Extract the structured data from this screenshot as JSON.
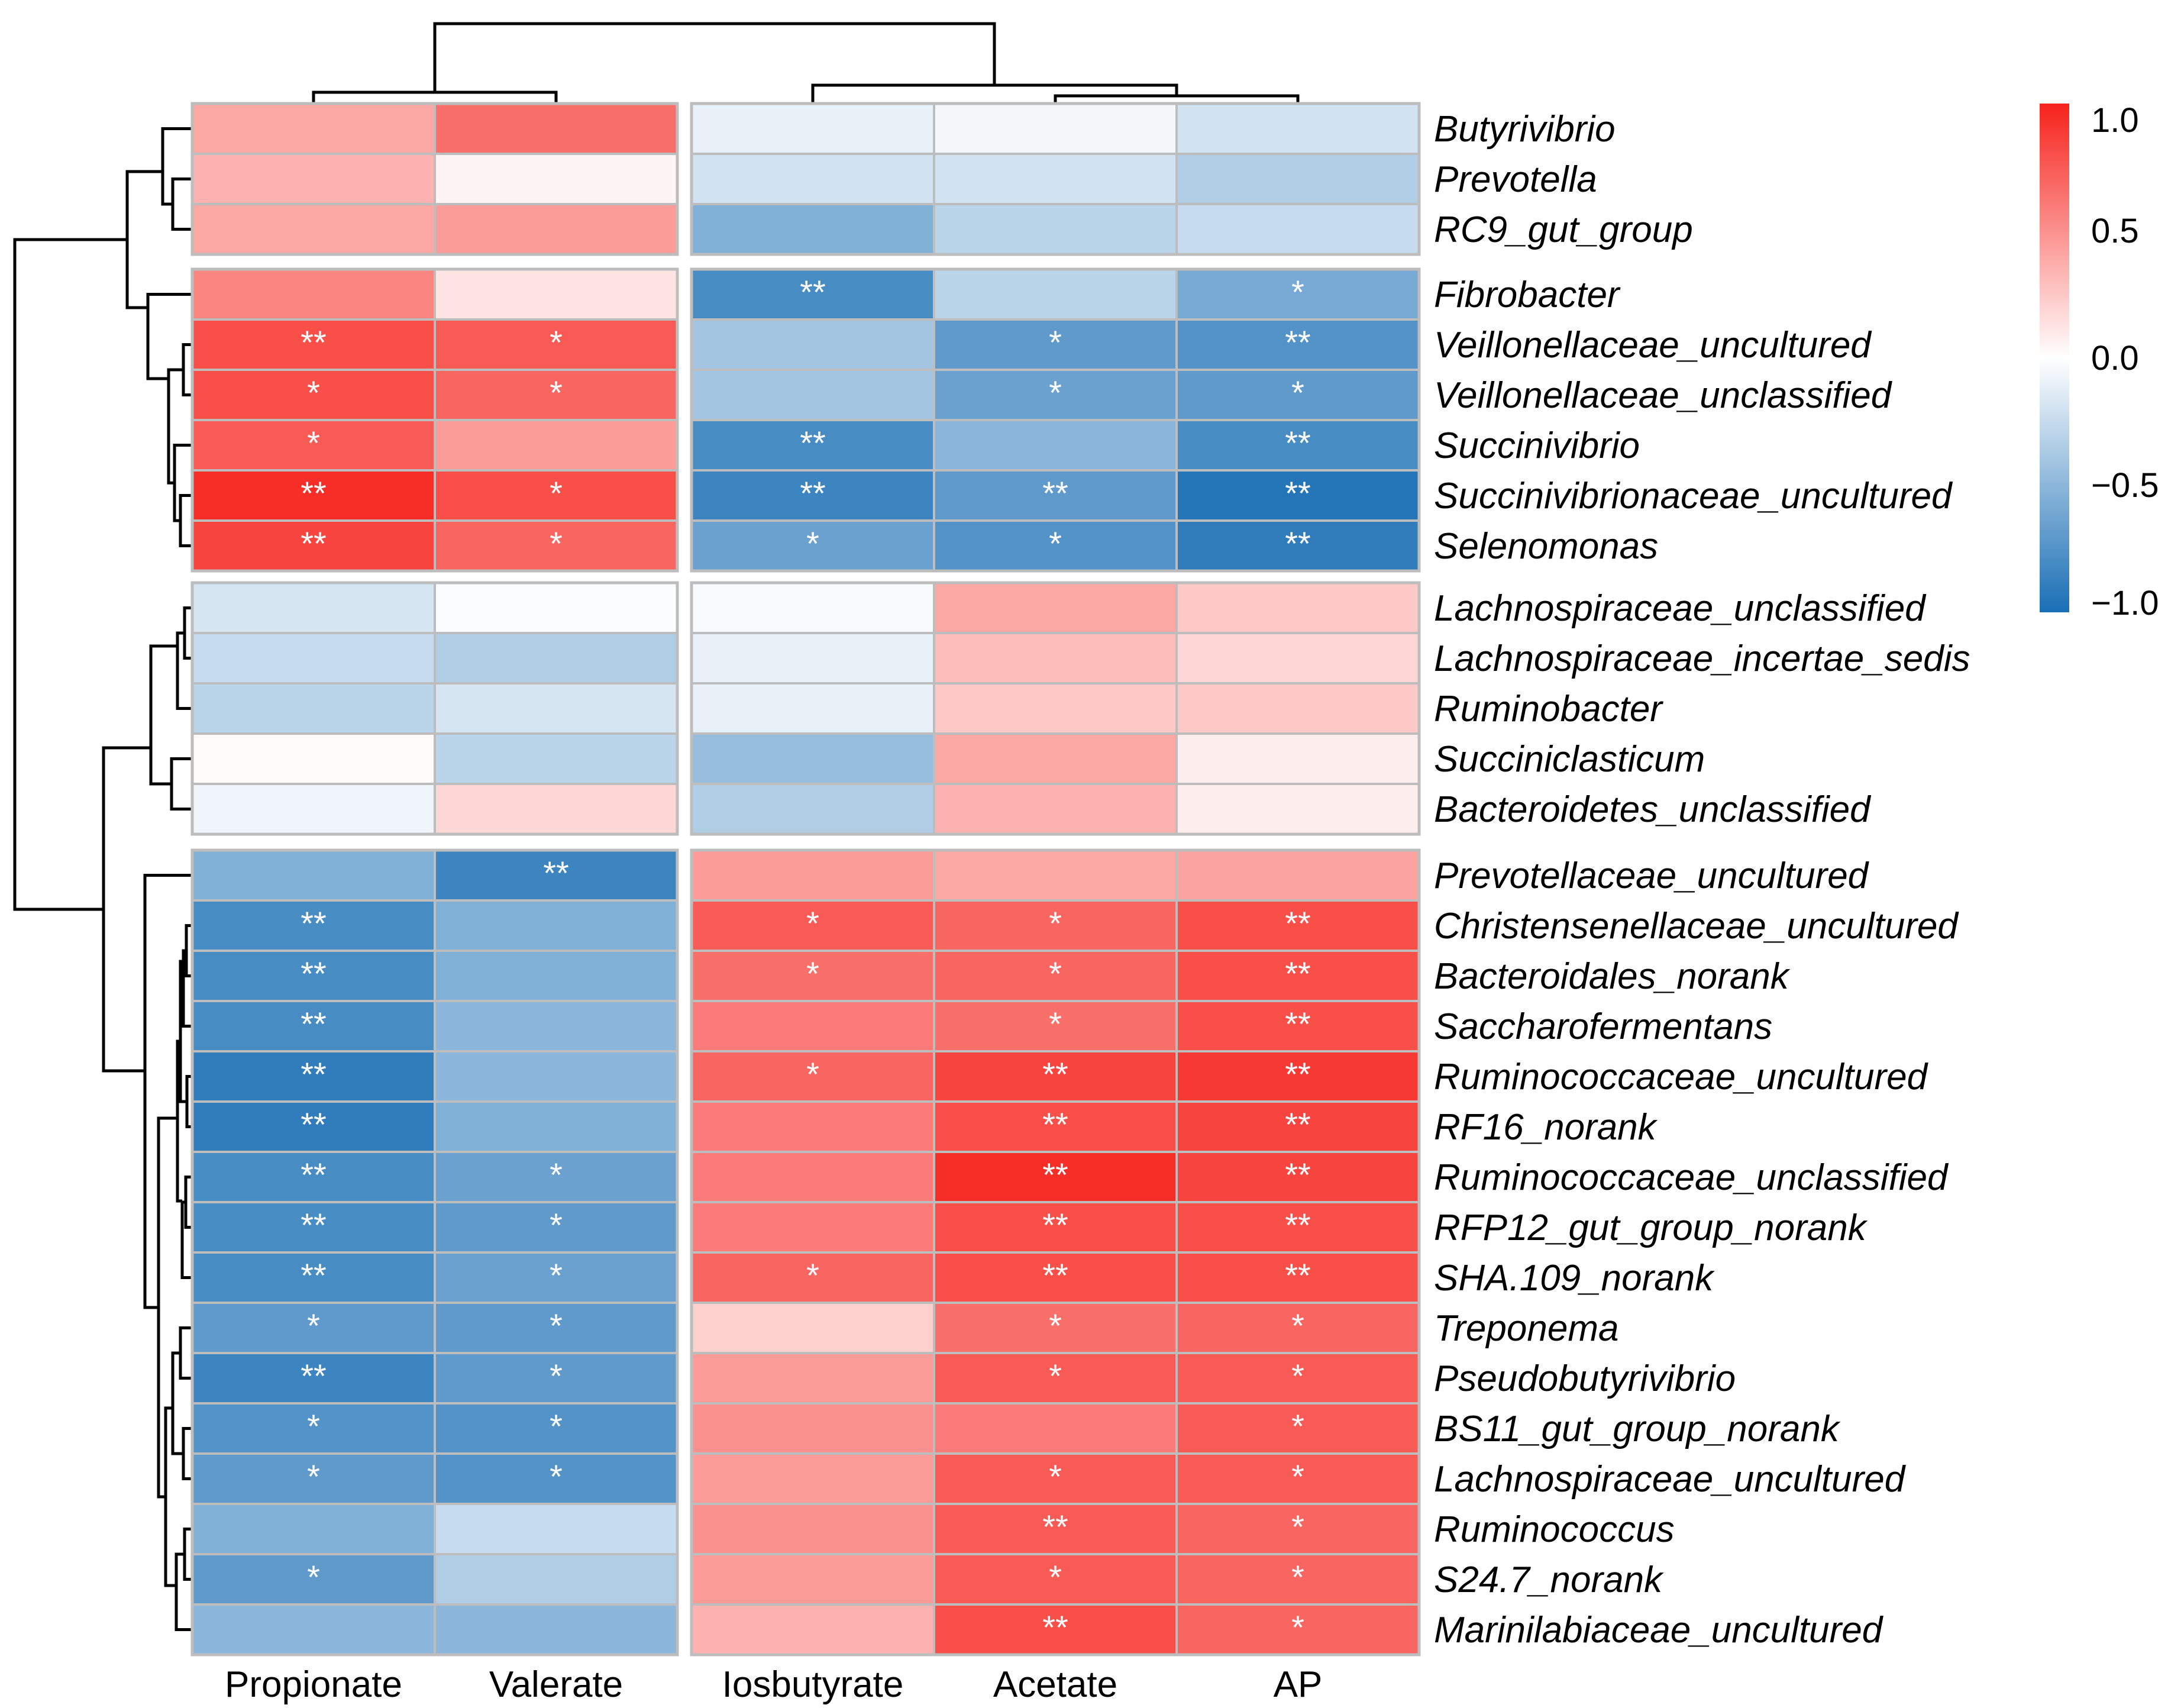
{
  "chart_data": {
    "type": "heatmap",
    "title": "",
    "columns": [
      "Propionate",
      "Valerate",
      "Iosbutyrate",
      "Acetate",
      "AP"
    ],
    "column_groups": [
      [
        0,
        1
      ],
      [
        2,
        3,
        4
      ]
    ],
    "rows": [
      "Butyrivibrio",
      "Prevotella",
      "RC9_gut_group",
      "Fibrobacter",
      "Veillonellaceae_uncultured",
      "Veillonellaceae_unclassified",
      "Succinivibrio",
      "Succinivibrionaceae_uncultured",
      "Selenomonas",
      "Lachnospiraceae_unclassified",
      "Lachnospiraceae_incertae_sedis",
      "Ruminobacter",
      "Succiniclasticum",
      "Bacteroidetes_unclassified",
      "Prevotellaceae_uncultured",
      "Christensenellaceae_uncultured",
      "Bacteroidales_norank",
      "Saccharofermentans",
      "Ruminococcaceae_uncultured",
      "RF16_norank",
      "Ruminococcaceae_unclassified",
      "RFP12_gut_group_norank",
      "SHA.109_norank",
      "Treponema",
      "Pseudobutyrivibrio",
      "BS11_gut_group_norank",
      "Lachnospiraceae_uncultured",
      "Ruminococcus",
      "S24.7_norank",
      "Marinilabiaceae_uncultured"
    ],
    "row_groups": [
      [
        0,
        2
      ],
      [
        3,
        8
      ],
      [
        9,
        13
      ],
      [
        14,
        29
      ]
    ],
    "values": [
      [
        0.4,
        0.65,
        -0.1,
        -0.05,
        -0.2
      ],
      [
        0.35,
        0.05,
        -0.2,
        -0.2,
        -0.35
      ],
      [
        0.4,
        0.45,
        -0.55,
        -0.3,
        -0.25
      ],
      [
        0.55,
        0.12,
        -0.8,
        -0.3,
        -0.6
      ],
      [
        0.8,
        0.75,
        -0.4,
        -0.7,
        -0.75
      ],
      [
        0.8,
        0.7,
        -0.4,
        -0.65,
        -0.7
      ],
      [
        0.75,
        0.45,
        -0.8,
        -0.5,
        -0.8
      ],
      [
        0.95,
        0.8,
        -0.85,
        -0.7,
        -0.95
      ],
      [
        0.85,
        0.7,
        -0.65,
        -0.75,
        -0.9
      ],
      [
        -0.18,
        -0.02,
        -0.03,
        0.4,
        0.25
      ],
      [
        -0.25,
        -0.35,
        -0.1,
        0.3,
        0.18
      ],
      [
        -0.3,
        -0.18,
        -0.1,
        0.25,
        0.25
      ],
      [
        0.02,
        -0.3,
        -0.45,
        0.4,
        0.08
      ],
      [
        -0.07,
        0.18,
        -0.35,
        0.35,
        0.08
      ],
      [
        -0.55,
        -0.85,
        0.45,
        0.4,
        0.42
      ],
      [
        -0.8,
        -0.55,
        0.75,
        0.7,
        0.8
      ],
      [
        -0.8,
        -0.55,
        0.65,
        0.7,
        0.8
      ],
      [
        -0.8,
        -0.5,
        0.6,
        0.65,
        0.8
      ],
      [
        -0.9,
        -0.5,
        0.7,
        0.85,
        0.9
      ],
      [
        -0.9,
        -0.55,
        0.6,
        0.8,
        0.85
      ],
      [
        -0.8,
        -0.65,
        0.6,
        0.95,
        0.85
      ],
      [
        -0.8,
        -0.7,
        0.6,
        0.8,
        0.8
      ],
      [
        -0.8,
        -0.65,
        0.7,
        0.8,
        0.8
      ],
      [
        -0.7,
        -0.7,
        0.22,
        0.65,
        0.7
      ],
      [
        -0.85,
        -0.7,
        0.45,
        0.75,
        0.75
      ],
      [
        -0.75,
        -0.75,
        0.5,
        0.6,
        0.75
      ],
      [
        -0.7,
        -0.75,
        0.45,
        0.75,
        0.75
      ],
      [
        -0.55,
        -0.25,
        0.5,
        0.75,
        0.7
      ],
      [
        -0.7,
        -0.35,
        0.45,
        0.75,
        0.7
      ],
      [
        -0.5,
        -0.5,
        0.35,
        0.8,
        0.7
      ]
    ],
    "significance": [
      [
        "",
        "",
        "",
        "",
        ""
      ],
      [
        "",
        "",
        "",
        "",
        ""
      ],
      [
        "",
        "",
        "",
        "",
        ""
      ],
      [
        "",
        "",
        "**",
        "",
        "*"
      ],
      [
        "**",
        "*",
        "",
        "*",
        "**"
      ],
      [
        "*",
        "*",
        "",
        "*",
        "*"
      ],
      [
        "*",
        "",
        "**",
        "",
        "**"
      ],
      [
        "**",
        "*",
        "**",
        "**",
        "**"
      ],
      [
        "**",
        "*",
        "*",
        "*",
        "**"
      ],
      [
        "",
        "",
        "",
        "",
        ""
      ],
      [
        "",
        "",
        "",
        "",
        ""
      ],
      [
        "",
        "",
        "",
        "",
        ""
      ],
      [
        "",
        "",
        "",
        "",
        ""
      ],
      [
        "",
        "",
        "",
        "",
        ""
      ],
      [
        "",
        "**",
        "",
        "",
        ""
      ],
      [
        "**",
        "",
        "*",
        "*",
        "**"
      ],
      [
        "**",
        "",
        "*",
        "*",
        "**"
      ],
      [
        "**",
        "",
        "",
        "*",
        "**"
      ],
      [
        "**",
        "",
        "*",
        "**",
        "**"
      ],
      [
        "**",
        "",
        "",
        "**",
        "**"
      ],
      [
        "**",
        "*",
        "",
        "**",
        "**"
      ],
      [
        "**",
        "*",
        "",
        "**",
        "**"
      ],
      [
        "**",
        "*",
        "*",
        "**",
        "**"
      ],
      [
        "*",
        "*",
        "",
        "*",
        "*"
      ],
      [
        "**",
        "*",
        "",
        "*",
        "*"
      ],
      [
        "*",
        "*",
        "",
        "",
        "*"
      ],
      [
        "*",
        "*",
        "",
        "*",
        "*"
      ],
      [
        "",
        "",
        "",
        "**",
        "*"
      ],
      [
        "*",
        "",
        "",
        "*",
        "*"
      ],
      [
        "",
        "",
        "",
        "**",
        "*"
      ]
    ],
    "color_scale": {
      "range": [
        -1.0,
        1.0
      ],
      "ticks": [
        1.0,
        0.5,
        0.0,
        -0.5,
        -1.0
      ],
      "tick_labels": [
        "1.0",
        "0.5",
        "0.0",
        "−0.5",
        "−1.0"
      ],
      "low_color": "#1a6fb5",
      "mid_color": "#ffffff",
      "high_color": "#f6231c"
    }
  }
}
